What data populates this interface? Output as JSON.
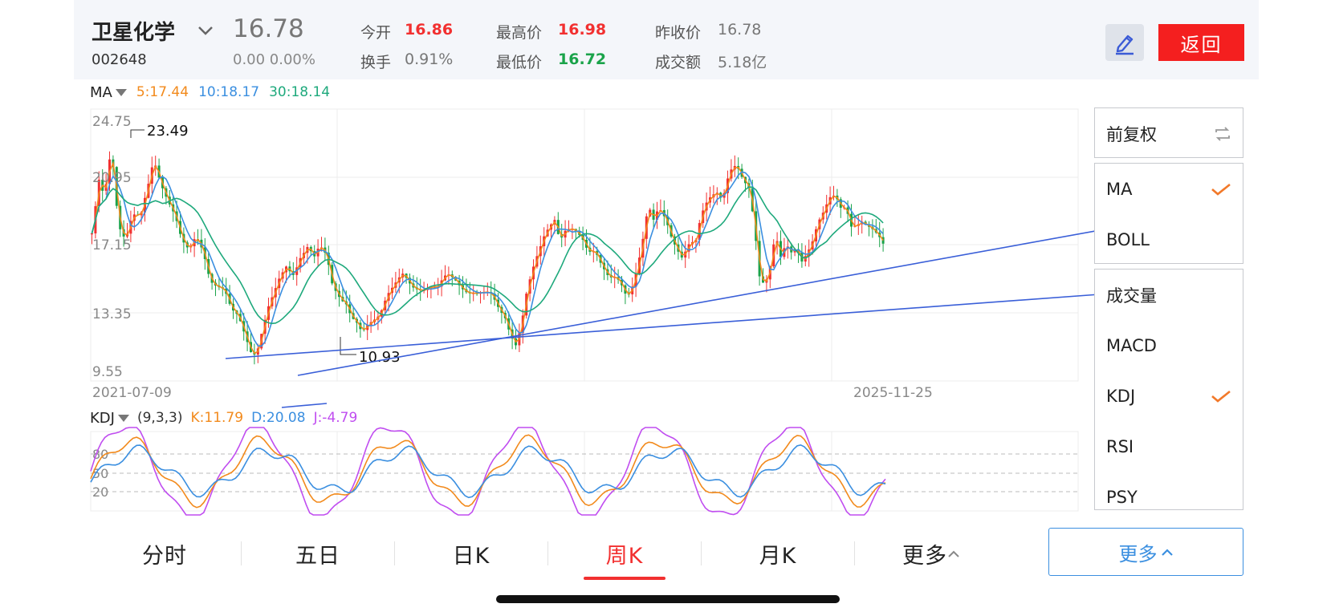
{
  "header": {
    "stock_name": "卫星化学",
    "stock_code": "002648",
    "price": "16.78",
    "change": "0.00  0.00%",
    "quotes": [
      {
        "label": "今开",
        "value": "16.86",
        "color": "red"
      },
      {
        "label": "最高价",
        "value": "16.98",
        "color": "red"
      },
      {
        "label": "昨收价",
        "value": "16.78",
        "color": "gray"
      },
      {
        "label": "换手",
        "value": "0.91%",
        "color": "gray"
      },
      {
        "label": "最低价",
        "value": "16.72",
        "color": "green"
      },
      {
        "label": "成交额",
        "value": "5.18亿",
        "color": "gray"
      }
    ],
    "back_label": "返回"
  },
  "ma_bar": {
    "indicator": "MA",
    "ma5": "5:17.44",
    "ma10": "10:18.17",
    "ma30": "30:18.14"
  },
  "kdj_bar": {
    "indicator": "KDJ",
    "params": "(9,3,3)",
    "k": "K:11.79",
    "d": "D:20.08",
    "j": "J:-4.79"
  },
  "chart_data": [
    {
      "type": "candlestick",
      "y_ticks": [
        "24.75",
        "20.95",
        "17.15",
        "13.35",
        "9.55"
      ],
      "ylim": [
        9.55,
        24.75
      ],
      "x_labels": [
        "2021-07-09",
        "2025-11-25"
      ],
      "annotations": [
        {
          "label": "23.49",
          "kind": "max"
        },
        {
          "label": "10.93",
          "kind": "min"
        }
      ],
      "series": [
        {
          "name": "MA5",
          "color": "#f28a1c"
        },
        {
          "name": "MA10",
          "color": "#3b8fe0"
        },
        {
          "name": "MA30",
          "color": "#1ea97c"
        }
      ],
      "trendlines": 2
    },
    {
      "type": "line",
      "indicator": "KDJ",
      "y_ticks": [
        "80",
        "50",
        "20"
      ],
      "series": [
        {
          "name": "K",
          "color": "#f28a1c"
        },
        {
          "name": "D",
          "color": "#3b8fe0"
        },
        {
          "name": "J",
          "color": "#c04df0"
        }
      ]
    }
  ],
  "side_panel": {
    "adjust": "前复权",
    "main_indicators": [
      {
        "label": "MA",
        "checked": true
      },
      {
        "label": "BOLL",
        "checked": false
      }
    ],
    "sub_indicators": [
      {
        "label": "成交量",
        "checked": false
      },
      {
        "label": "MACD",
        "checked": false
      },
      {
        "label": "KDJ",
        "checked": true
      },
      {
        "label": "RSI",
        "checked": false
      },
      {
        "label": "PSY",
        "checked": false
      }
    ]
  },
  "tabs": [
    {
      "label": "分时",
      "active": false
    },
    {
      "label": "五日",
      "active": false
    },
    {
      "label": "日K",
      "active": false
    },
    {
      "label": "周K",
      "active": true
    },
    {
      "label": "月K",
      "active": false
    },
    {
      "label": "更多",
      "active": false
    }
  ],
  "more_button": "更多",
  "colors": {
    "up": "#f23030",
    "down": "#1aa34a",
    "accent_blue": "#3b8fe0",
    "trendline": "#3a5fd8"
  }
}
